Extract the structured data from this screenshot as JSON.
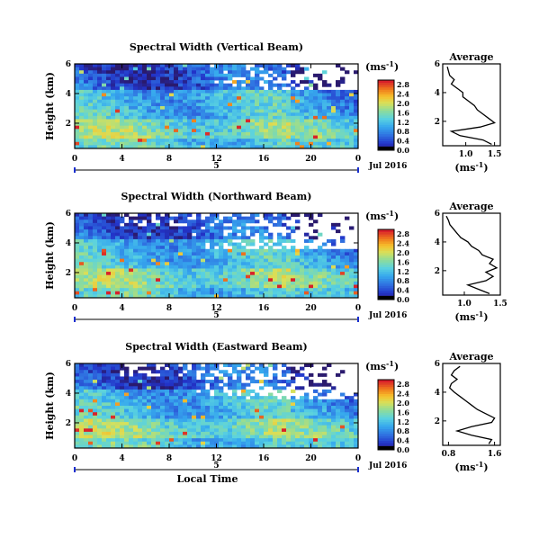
{
  "chart_data": [
    {
      "type": "heatmap",
      "title": "Spectral Width (Vertical Beam)",
      "xlabel": "",
      "ylabel": "Height (km)",
      "x_ticks": [
        "0",
        "4",
        "8",
        "12",
        "16",
        "20",
        "0"
      ],
      "y_ticks": [
        "2",
        "4",
        "6"
      ],
      "xlim": [
        0,
        24
      ],
      "ylim": [
        0.3,
        6.0
      ],
      "date_label": "Jul 2016",
      "day_label": "5",
      "colorbar": {
        "unit_label": "(ms",
        "unit_sup": "-1",
        "unit_close": ")",
        "ticks": [
          "0.0",
          "0.4",
          "0.8",
          "1.2",
          "1.6",
          "2.0",
          "2.4",
          "2.8"
        ],
        "range": [
          0.0,
          3.0
        ]
      },
      "average_profile": {
        "title": "Average",
        "xlabel": "(ms",
        "xlabel_sup": "-1",
        "xlabel_close": ")",
        "x_ticks": [
          "1.0",
          "1.5"
        ],
        "xlim": [
          0.6,
          1.6
        ],
        "y_ticks": [
          "2",
          "4",
          "6"
        ],
        "heights": [
          0.4,
          0.7,
          1.0,
          1.3,
          1.6,
          1.9,
          2.2,
          2.5,
          2.8,
          3.1,
          3.4,
          3.7,
          4.0,
          4.3,
          4.6,
          4.9,
          5.2,
          5.5,
          5.8
        ],
        "values": [
          1.45,
          1.3,
          0.9,
          0.75,
          1.25,
          1.5,
          1.4,
          1.3,
          1.2,
          1.15,
          1.05,
          0.95,
          0.95,
          0.85,
          0.75,
          0.8,
          0.72,
          0.7,
          0.68
        ]
      }
    },
    {
      "type": "heatmap",
      "title": "Spectral Width (Northward Beam)",
      "xlabel": "",
      "ylabel": "Height (km)",
      "x_ticks": [
        "0",
        "4",
        "8",
        "12",
        "16",
        "20",
        "0"
      ],
      "y_ticks": [
        "2",
        "4",
        "6"
      ],
      "xlim": [
        0,
        24
      ],
      "ylim": [
        0.3,
        6.0
      ],
      "date_label": "Jul 2016",
      "day_label": "5",
      "colorbar": {
        "unit_label": "(ms",
        "unit_sup": "-1",
        "unit_close": ")",
        "ticks": [
          "0.0",
          "0.4",
          "0.8",
          "1.2",
          "1.6",
          "2.0",
          "2.4",
          "2.8"
        ],
        "range": [
          0.0,
          3.0
        ]
      },
      "average_profile": {
        "title": "Average",
        "xlabel": "(ms",
        "xlabel_sup": "-1",
        "xlabel_close": ")",
        "x_ticks": [
          "1.0",
          "1.5"
        ],
        "xlim": [
          0.7,
          1.5
        ],
        "y_ticks": [
          "2",
          "4",
          "6"
        ],
        "heights": [
          0.4,
          0.7,
          1.0,
          1.3,
          1.6,
          1.9,
          2.2,
          2.5,
          2.8,
          3.1,
          3.4,
          3.7,
          4.0,
          4.3,
          4.6,
          4.9,
          5.2,
          5.5,
          5.8
        ],
        "values": [
          1.35,
          1.2,
          1.05,
          1.3,
          1.4,
          1.3,
          1.45,
          1.35,
          1.4,
          1.25,
          1.2,
          1.1,
          1.05,
          0.95,
          0.9,
          0.85,
          0.8,
          0.78,
          0.75
        ]
      }
    },
    {
      "type": "heatmap",
      "title": "Spectral Width (Eastward Beam)",
      "xlabel": "Local Time",
      "ylabel": "Height (km)",
      "x_ticks": [
        "0",
        "4",
        "8",
        "12",
        "16",
        "20",
        "0"
      ],
      "y_ticks": [
        "2",
        "4",
        "6"
      ],
      "xlim": [
        0,
        24
      ],
      "ylim": [
        0.3,
        6.0
      ],
      "date_label": "Jul 2016",
      "day_label": "5",
      "colorbar": {
        "unit_label": "(ms",
        "unit_sup": "-1",
        "unit_close": ")",
        "ticks": [
          "0.0",
          "0.4",
          "0.8",
          "1.2",
          "1.6",
          "2.0",
          "2.4",
          "2.8"
        ],
        "range": [
          0.0,
          3.0
        ]
      },
      "average_profile": {
        "title": "Average",
        "xlabel": "(ms",
        "xlabel_sup": "-1",
        "xlabel_close": ")",
        "x_ticks": [
          "0.8",
          "1.6"
        ],
        "xlim": [
          0.7,
          1.7
        ],
        "y_ticks": [
          "2",
          "4",
          "6"
        ],
        "heights": [
          0.4,
          0.7,
          1.0,
          1.3,
          1.6,
          1.9,
          2.2,
          2.5,
          2.8,
          3.1,
          3.4,
          3.7,
          4.0,
          4.3,
          4.6,
          4.9,
          5.2,
          5.5,
          5.8
        ],
        "values": [
          1.5,
          1.55,
          1.2,
          0.95,
          1.2,
          1.55,
          1.6,
          1.45,
          1.3,
          1.2,
          1.1,
          1.0,
          0.9,
          0.82,
          0.85,
          0.95,
          0.85,
          0.9,
          1.0
        ]
      }
    }
  ]
}
